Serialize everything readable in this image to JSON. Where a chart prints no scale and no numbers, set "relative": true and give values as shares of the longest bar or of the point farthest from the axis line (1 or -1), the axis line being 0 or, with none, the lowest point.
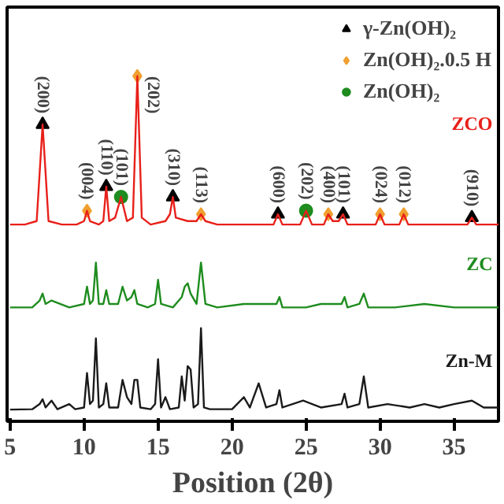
{
  "chart_data": {
    "type": "line",
    "relative": true,
    "xlabel": "Position (2θ)",
    "xlim": [
      4.8,
      38
    ],
    "xticks": [
      5,
      10,
      15,
      20,
      25,
      30,
      35
    ],
    "legend": "top right",
    "grid": false,
    "series": [
      {
        "name": "ZCO",
        "color": "#e8201a",
        "x": [
          5,
          6,
          6.8,
          7.2,
          7.6,
          8.5,
          9.5,
          10.0,
          10.2,
          10.4,
          11.0,
          11.3,
          11.5,
          11.7,
          12.1,
          12.5,
          12.9,
          13.3,
          13.6,
          13.9,
          14.5,
          15.5,
          15.8,
          16.0,
          16.2,
          17.0,
          17.6,
          17.9,
          18.2,
          19,
          20,
          21,
          22,
          22.8,
          23.1,
          23.4,
          24.6,
          25.0,
          25.4,
          26.2,
          26.5,
          26.8,
          27.2,
          27.5,
          27.8,
          29,
          29.7,
          30.0,
          30.3,
          31.3,
          31.6,
          31.9,
          33,
          34,
          35,
          35.9,
          36.2,
          36.5,
          37.2,
          38
        ],
        "values": [
          0.57,
          0.57,
          0.58,
          0.86,
          0.58,
          0.57,
          0.57,
          0.58,
          0.61,
          0.58,
          0.57,
          0.58,
          0.68,
          0.58,
          0.59,
          0.65,
          0.58,
          0.59,
          1.0,
          0.59,
          0.57,
          0.58,
          0.6,
          0.65,
          0.59,
          0.58,
          0.58,
          0.6,
          0.58,
          0.57,
          0.57,
          0.57,
          0.57,
          0.57,
          0.6,
          0.57,
          0.57,
          0.61,
          0.57,
          0.57,
          0.6,
          0.58,
          0.58,
          0.6,
          0.57,
          0.57,
          0.57,
          0.6,
          0.57,
          0.57,
          0.6,
          0.57,
          0.57,
          0.57,
          0.57,
          0.57,
          0.59,
          0.57,
          0.57,
          0.57
        ]
      },
      {
        "name": "ZC",
        "color": "#1e8c1e",
        "x": [
          5,
          6.5,
          7.0,
          7.2,
          7.4,
          7.8,
          9,
          10.0,
          10.2,
          10.4,
          10.6,
          10.8,
          11.0,
          11.3,
          11.5,
          11.7,
          12.3,
          12.6,
          12.9,
          13.2,
          13.4,
          13.6,
          14.3,
          14.8,
          15.0,
          15.2,
          16.0,
          16.6,
          16.8,
          17.0,
          17.2,
          17.6,
          17.9,
          18.2,
          19,
          20.8,
          21.8,
          23.0,
          23.2,
          23.4,
          25,
          26,
          27.4,
          27.6,
          27.8,
          28.6,
          28.9,
          29.2,
          31,
          33,
          35,
          37,
          38
        ],
        "values": [
          0.33,
          0.33,
          0.35,
          0.37,
          0.34,
          0.35,
          0.33,
          0.34,
          0.39,
          0.34,
          0.35,
          0.46,
          0.34,
          0.34,
          0.38,
          0.34,
          0.34,
          0.39,
          0.35,
          0.36,
          0.38,
          0.34,
          0.33,
          0.34,
          0.41,
          0.34,
          0.33,
          0.36,
          0.39,
          0.4,
          0.37,
          0.34,
          0.46,
          0.34,
          0.33,
          0.34,
          0.34,
          0.34,
          0.36,
          0.33,
          0.33,
          0.34,
          0.34,
          0.36,
          0.33,
          0.34,
          0.37,
          0.33,
          0.33,
          0.34,
          0.33,
          0.33,
          0.33
        ]
      },
      {
        "name": "Zn-M",
        "color": "#1a1a1a",
        "x": [
          5,
          6.5,
          7.0,
          7.2,
          7.4,
          7.8,
          8.2,
          9.0,
          9.4,
          10.0,
          10.2,
          10.4,
          10.6,
          10.8,
          11.0,
          11.3,
          11.5,
          11.7,
          12.3,
          12.6,
          12.9,
          13.2,
          13.4,
          13.6,
          13.8,
          14.5,
          14.8,
          15.0,
          15.2,
          15.5,
          15.8,
          16.4,
          16.6,
          16.8,
          17.0,
          17.2,
          17.4,
          17.7,
          17.9,
          18.1,
          18.5,
          20.0,
          20.8,
          21.2,
          21.8,
          22.3,
          23.0,
          23.2,
          23.4,
          24.8,
          26,
          27.4,
          27.6,
          27.8,
          28.6,
          28.9,
          29.2,
          30.5,
          32,
          33,
          34,
          35,
          36.2,
          37,
          38
        ],
        "values": [
          0.034,
          0.035,
          0.05,
          0.064,
          0.04,
          0.06,
          0.035,
          0.05,
          0.035,
          0.04,
          0.14,
          0.05,
          0.06,
          0.24,
          0.04,
          0.05,
          0.11,
          0.04,
          0.04,
          0.12,
          0.07,
          0.05,
          0.12,
          0.12,
          0.04,
          0.035,
          0.05,
          0.18,
          0.04,
          0.07,
          0.035,
          0.04,
          0.13,
          0.06,
          0.16,
          0.15,
          0.04,
          0.05,
          0.27,
          0.04,
          0.035,
          0.035,
          0.07,
          0.04,
          0.11,
          0.04,
          0.05,
          0.09,
          0.04,
          0.06,
          0.04,
          0.05,
          0.08,
          0.04,
          0.05,
          0.13,
          0.04,
          0.05,
          0.04,
          0.05,
          0.04,
          0.05,
          0.06,
          0.04,
          0.04
        ]
      },
      {
        "name": "γ-Zn(OH)₂",
        "color": "#000000",
        "type": "scatter",
        "marker": "triangle",
        "x": [
          7.2,
          11.5,
          16.0,
          23.1,
          27.5,
          36.2
        ],
        "values": [
          0.86,
          0.68,
          0.65,
          0.6,
          0.6,
          0.59
        ]
      },
      {
        "name": "Zn(OH)₂.0.5 H",
        "color": "#f0a030",
        "type": "scatter",
        "marker": "diamond",
        "x": [
          10.2,
          13.6,
          17.9,
          26.5,
          30.0,
          31.6
        ],
        "values": [
          0.61,
          1.0,
          0.6,
          0.6,
          0.6,
          0.6
        ]
      },
      {
        "name": "Zn(OH)₂",
        "color": "#1e8c1e",
        "type": "scatter",
        "marker": "circle",
        "x": [
          12.5,
          25.0
        ],
        "values": [
          0.65,
          0.61
        ]
      }
    ],
    "annotations": [
      {
        "text": "(200)",
        "x": 7.2,
        "y": 0.86
      },
      {
        "text": "(004)",
        "x": 10.2,
        "y": 0.61
      },
      {
        "text": "(110)",
        "x": 11.5,
        "y": 0.68
      },
      {
        "text": "(101)",
        "x": 12.5,
        "y": 0.65
      },
      {
        "text": "(202)",
        "x": 13.6,
        "y": 1.0
      },
      {
        "text": "(310)",
        "x": 16.0,
        "y": 0.65
      },
      {
        "text": "(113)",
        "x": 17.9,
        "y": 0.6
      },
      {
        "text": "(600)",
        "x": 23.1,
        "y": 0.6
      },
      {
        "text": "(202)",
        "x": 25.0,
        "y": 0.61
      },
      {
        "text": "(400)",
        "x": 26.5,
        "y": 0.6
      },
      {
        "text": "(101)",
        "x": 27.5,
        "y": 0.6
      },
      {
        "text": "(024)",
        "x": 30.0,
        "y": 0.6
      },
      {
        "text": "(012)",
        "x": 31.6,
        "y": 0.6
      },
      {
        "text": "(910)",
        "x": 36.2,
        "y": 0.59
      }
    ]
  }
}
